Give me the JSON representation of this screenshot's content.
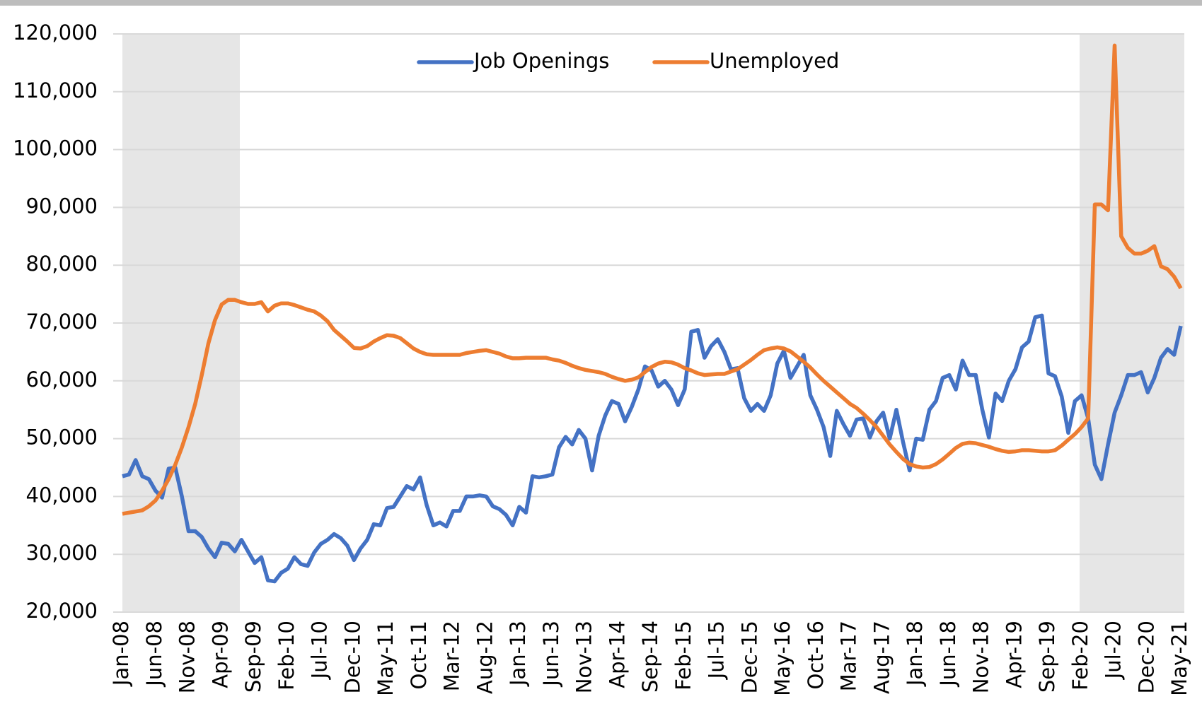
{
  "chart_data": {
    "type": "line",
    "categories": [
      "Jan-08",
      null,
      null,
      null,
      null,
      "Jun-08",
      null,
      null,
      null,
      null,
      "Nov-08",
      null,
      null,
      null,
      null,
      "Apr-09",
      null,
      null,
      null,
      null,
      "Sep-09",
      null,
      null,
      null,
      null,
      "Feb-10",
      null,
      null,
      null,
      null,
      "Jul-10",
      null,
      null,
      null,
      null,
      "Dec-10",
      null,
      null,
      null,
      null,
      "May-11",
      null,
      null,
      null,
      null,
      "Oct-11",
      null,
      null,
      null,
      null,
      "Mar-12",
      null,
      null,
      null,
      null,
      "Aug-12",
      null,
      null,
      null,
      null,
      "Jan-13",
      null,
      null,
      null,
      null,
      "Jun-13",
      null,
      null,
      null,
      null,
      "Nov-13",
      null,
      null,
      null,
      null,
      "Apr-14",
      null,
      null,
      null,
      null,
      "Sep-14",
      null,
      null,
      null,
      null,
      "Feb-15",
      null,
      null,
      null,
      null,
      "Jul-15",
      null,
      null,
      null,
      null,
      "Dec-15",
      null,
      null,
      null,
      null,
      "May-16",
      null,
      null,
      null,
      null,
      "Oct-16",
      null,
      null,
      null,
      null,
      "Mar-17",
      null,
      null,
      null,
      null,
      "Aug-17",
      null,
      null,
      null,
      null,
      "Jan-18",
      null,
      null,
      null,
      null,
      "Jun-18",
      null,
      null,
      null,
      null,
      "Nov-18",
      null,
      null,
      null,
      null,
      "Apr-19",
      null,
      null,
      null,
      null,
      "Sep-19",
      null,
      null,
      null,
      null,
      "Feb-20",
      null,
      null,
      null,
      null,
      "Jul-20",
      null,
      null,
      null,
      null,
      "Dec-20",
      null,
      null,
      null,
      null,
      "May-21"
    ],
    "series": [
      {
        "name": "Job Openings",
        "color": "#4472c4",
        "values": [
          43500,
          43800,
          46300,
          43500,
          43000,
          41000,
          39800,
          44800,
          45000,
          40000,
          34000,
          34000,
          33000,
          31000,
          29500,
          32000,
          31800,
          30500,
          32500,
          30500,
          28500,
          29500,
          25500,
          25300,
          26800,
          27500,
          29500,
          28300,
          28000,
          30300,
          31800,
          32500,
          33500,
          32800,
          31500,
          29000,
          31000,
          32500,
          35200,
          35000,
          38000,
          38200,
          40000,
          41800,
          41200,
          43300,
          38500,
          35000,
          35500,
          34800,
          37500,
          37500,
          40000,
          40000,
          40200,
          40000,
          38300,
          37800,
          36800,
          35000,
          38200,
          37200,
          43500,
          43300,
          43500,
          43800,
          48500,
          50300,
          49000,
          51500,
          50000,
          44500,
          50500,
          54000,
          56500,
          56000,
          53000,
          55500,
          58500,
          62500,
          61800,
          59000,
          60000,
          58500,
          55800,
          58500,
          68500,
          68800,
          64000,
          66000,
          67200,
          65000,
          62000,
          62200,
          57000,
          54800,
          56000,
          54800,
          57500,
          63000,
          65200,
          60500,
          62500,
          64500,
          57500,
          55000,
          52000,
          47000,
          54800,
          52500,
          50500,
          53300,
          53500,
          50200,
          53000,
          54500,
          50000,
          55000,
          49500,
          44500,
          50000,
          49800,
          55000,
          56500,
          60500,
          61000,
          58500,
          63500,
          61000,
          61000,
          55000,
          50200,
          57800,
          56500,
          60000,
          62000,
          65800,
          66800,
          71000,
          71300,
          61300,
          60800,
          57300,
          51000,
          56500,
          57500,
          53500,
          45500,
          43000,
          49000,
          54500,
          57500,
          61000,
          61000,
          61500,
          58000,
          60500,
          64000,
          65500,
          64500,
          69500
        ]
      },
      {
        "name": "Unemployed",
        "color": "#ed7d31",
        "values": [
          37000,
          37200,
          37400,
          37600,
          38300,
          39300,
          41000,
          43000,
          45500,
          48500,
          52000,
          56000,
          61000,
          66500,
          70500,
          73200,
          74000,
          74000,
          73600,
          73300,
          73300,
          73600,
          72000,
          73000,
          73400,
          73400,
          73100,
          72700,
          72300,
          72000,
          71300,
          70300,
          68800,
          67800,
          66800,
          65700,
          65600,
          66000,
          66800,
          67400,
          67900,
          67800,
          67400,
          66500,
          65600,
          65000,
          64600,
          64500,
          64500,
          64500,
          64500,
          64500,
          64800,
          65000,
          65200,
          65300,
          65000,
          64700,
          64200,
          63900,
          63900,
          64000,
          64000,
          64000,
          64000,
          63700,
          63500,
          63100,
          62600,
          62200,
          61900,
          61700,
          61500,
          61200,
          60700,
          60300,
          60000,
          60200,
          60600,
          61500,
          62400,
          63000,
          63300,
          63200,
          62800,
          62200,
          61800,
          61300,
          61000,
          61100,
          61200,
          61200,
          61600,
          62000,
          62800,
          63600,
          64500,
          65300,
          65600,
          65800,
          65600,
          65100,
          64200,
          63300,
          62300,
          61100,
          60000,
          59000,
          58000,
          57000,
          56000,
          55300,
          54300,
          53200,
          52000,
          50500,
          49000,
          47700,
          46500,
          45600,
          45200,
          45000,
          45100,
          45600,
          46400,
          47400,
          48400,
          49100,
          49300,
          49200,
          48900,
          48600,
          48200,
          47900,
          47700,
          47800,
          48000,
          48000,
          47900,
          47800,
          47800,
          48000,
          48800,
          49800,
          50800,
          52000,
          53500,
          90500,
          90500,
          89500,
          118000,
          85000,
          83000,
          82000,
          82000,
          82500,
          83300,
          79800,
          79300,
          78000,
          76000
        ]
      }
    ],
    "ylim": [
      20000,
      120000
    ],
    "yticks": [
      {
        "value": 20000,
        "label": "20,000"
      },
      {
        "value": 30000,
        "label": "30,000"
      },
      {
        "value": 40000,
        "label": "40,000"
      },
      {
        "value": 50000,
        "label": "50,000"
      },
      {
        "value": 60000,
        "label": "60,000"
      },
      {
        "value": 70000,
        "label": "70,000"
      },
      {
        "value": 80000,
        "label": "80,000"
      },
      {
        "value": 90000,
        "label": "90,000"
      },
      {
        "value": 100000,
        "label": "100,000"
      },
      {
        "value": 110000,
        "label": "110,000"
      },
      {
        "value": 120000,
        "label": "120,000"
      }
    ],
    "grid": true,
    "legend": "top"
  }
}
